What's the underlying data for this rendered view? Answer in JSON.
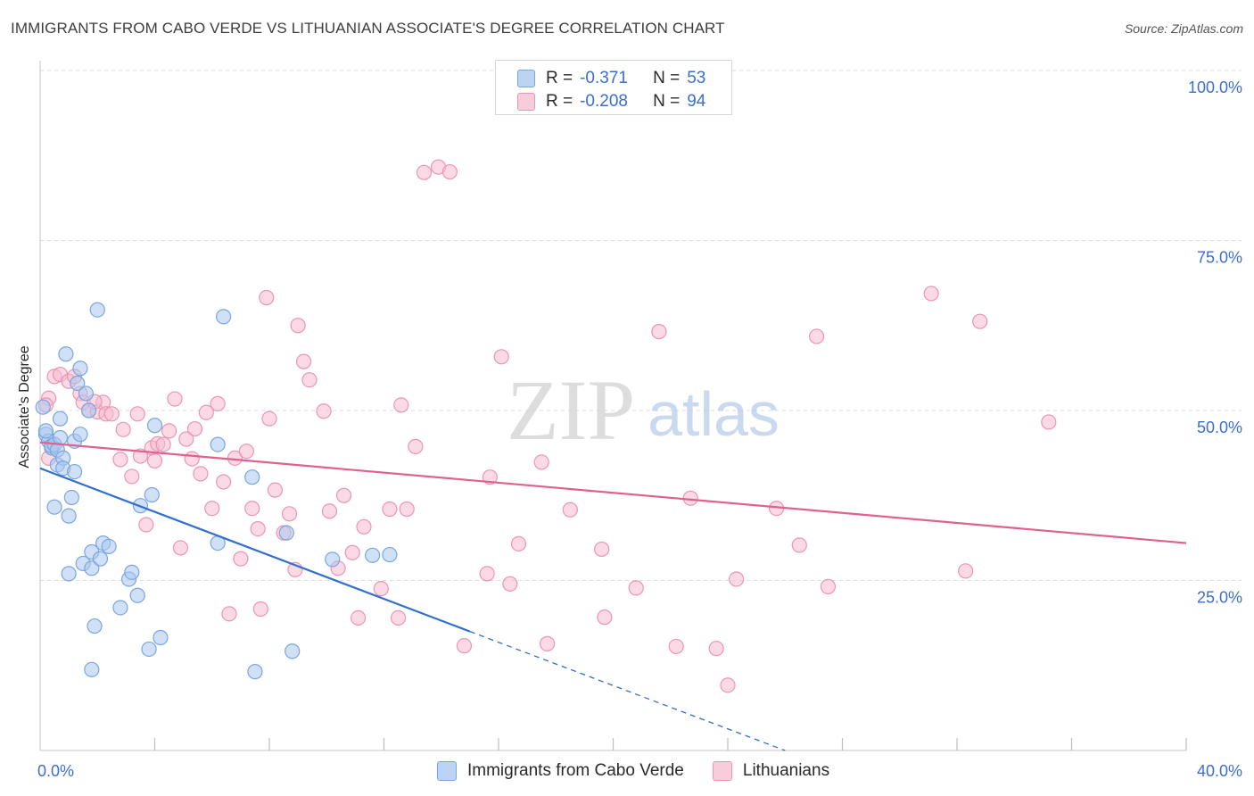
{
  "title": "IMMIGRANTS FROM CABO VERDE VS LITHUANIAN ASSOCIATE'S DEGREE CORRELATION CHART",
  "source": "Source: ZipAtlas.com",
  "watermark": {
    "zip": "ZIP",
    "atlas": "atlas"
  },
  "legend": {
    "r_label": "R =",
    "n_label": "N =",
    "series": [
      {
        "name": "Immigrants from Cabo Verde",
        "r": "-0.371",
        "n": "53"
      },
      {
        "name": "Lithuanians",
        "r": "-0.208",
        "n": "94"
      }
    ]
  },
  "colors": {
    "blue_fill": "#a9c8f0",
    "blue_stroke": "#7aa6de",
    "blue_line": "#2f6fd0",
    "pink_fill": "#f7bcd0",
    "pink_stroke": "#ec94b4",
    "pink_line": "#e0608e",
    "tick_text": "#3a6fd0",
    "grid": "#dedede"
  },
  "chart_data": {
    "type": "scatter",
    "title": "IMMIGRANTS FROM CABO VERDE VS LITHUANIAN ASSOCIATE'S DEGREE CORRELATION CHART",
    "xlabel": "",
    "ylabel": "Associate's Degree",
    "xlim": [
      0,
      40
    ],
    "ylim": [
      0,
      100
    ],
    "x_tick_labels": [
      {
        "value": 0,
        "label": "0.0%"
      },
      {
        "value": 40,
        "label": "40.0%"
      }
    ],
    "y_tick_labels": [
      {
        "value": 25,
        "label": "25.0%"
      },
      {
        "value": 50,
        "label": "50.0%"
      },
      {
        "value": 75,
        "label": "75.0%"
      },
      {
        "value": 100,
        "label": "100.0%"
      }
    ],
    "series": [
      {
        "name": "Immigrants from Cabo Verde",
        "color": "blue",
        "trend": {
          "x0": 0,
          "y0": 41.5,
          "x1": 15.0,
          "y1": 17.5,
          "dash_to_x": 26.0,
          "dash_to_y": 0
        },
        "points": [
          [
            0.1,
            50.5
          ],
          [
            0.2,
            46.5
          ],
          [
            0.3,
            45.5
          ],
          [
            0.4,
            44.5
          ],
          [
            0.4,
            44.8
          ],
          [
            0.5,
            45.0
          ],
          [
            0.6,
            44.2
          ],
          [
            0.6,
            42.0
          ],
          [
            0.7,
            46.0
          ],
          [
            0.7,
            48.8
          ],
          [
            0.8,
            43.0
          ],
          [
            0.8,
            41.5
          ],
          [
            0.9,
            58.3
          ],
          [
            1.0,
            26.0
          ],
          [
            1.0,
            34.5
          ],
          [
            1.1,
            37.2
          ],
          [
            1.2,
            41.0
          ],
          [
            1.2,
            45.5
          ],
          [
            1.3,
            54.0
          ],
          [
            1.4,
            56.2
          ],
          [
            1.4,
            46.5
          ],
          [
            1.5,
            27.5
          ],
          [
            1.6,
            52.5
          ],
          [
            1.7,
            50.0
          ],
          [
            1.8,
            29.2
          ],
          [
            1.8,
            26.8
          ],
          [
            1.9,
            18.3
          ],
          [
            2.0,
            64.8
          ],
          [
            2.1,
            28.2
          ],
          [
            2.2,
            30.5
          ],
          [
            2.4,
            30.0
          ],
          [
            2.8,
            21.0
          ],
          [
            3.1,
            25.2
          ],
          [
            3.2,
            26.2
          ],
          [
            3.5,
            36.0
          ],
          [
            3.4,
            22.8
          ],
          [
            3.8,
            14.9
          ],
          [
            3.9,
            37.6
          ],
          [
            4.0,
            47.8
          ],
          [
            4.2,
            16.6
          ],
          [
            1.8,
            11.9
          ],
          [
            6.2,
            45.0
          ],
          [
            6.2,
            30.5
          ],
          [
            6.4,
            63.8
          ],
          [
            7.4,
            40.2
          ],
          [
            7.5,
            11.6
          ],
          [
            8.6,
            32.0
          ],
          [
            8.8,
            14.6
          ],
          [
            10.2,
            28.1
          ],
          [
            11.6,
            28.7
          ],
          [
            12.2,
            28.8
          ],
          [
            0.5,
            35.8
          ],
          [
            0.2,
            47.0
          ]
        ]
      },
      {
        "name": "Lithuanians",
        "color": "pink",
        "trend": {
          "x0": 0,
          "y0": 45.3,
          "x1": 40,
          "y1": 30.5
        },
        "points": [
          [
            0.3,
            51.8
          ],
          [
            0.3,
            43.0
          ],
          [
            0.5,
            55.0
          ],
          [
            0.7,
            55.3
          ],
          [
            1.0,
            54.3
          ],
          [
            1.2,
            55.0
          ],
          [
            1.4,
            52.5
          ],
          [
            1.5,
            51.2
          ],
          [
            1.7,
            50.0
          ],
          [
            2.0,
            49.8
          ],
          [
            2.2,
            51.2
          ],
          [
            2.3,
            49.5
          ],
          [
            2.5,
            49.5
          ],
          [
            2.8,
            42.8
          ],
          [
            2.9,
            47.2
          ],
          [
            3.2,
            40.3
          ],
          [
            3.4,
            49.5
          ],
          [
            3.5,
            43.3
          ],
          [
            3.7,
            33.2
          ],
          [
            3.9,
            44.5
          ],
          [
            4.0,
            42.6
          ],
          [
            4.1,
            45.1
          ],
          [
            4.3,
            45.0
          ],
          [
            4.5,
            47.0
          ],
          [
            4.7,
            51.7
          ],
          [
            4.9,
            29.8
          ],
          [
            5.1,
            45.8
          ],
          [
            5.3,
            42.9
          ],
          [
            5.4,
            47.3
          ],
          [
            5.6,
            40.7
          ],
          [
            5.8,
            49.7
          ],
          [
            6.0,
            35.6
          ],
          [
            6.2,
            51.0
          ],
          [
            6.4,
            39.5
          ],
          [
            6.6,
            20.1
          ],
          [
            6.8,
            43.0
          ],
          [
            7.0,
            28.2
          ],
          [
            7.2,
            44.0
          ],
          [
            7.4,
            35.6
          ],
          [
            7.6,
            32.6
          ],
          [
            7.7,
            20.8
          ],
          [
            7.9,
            66.6
          ],
          [
            8.0,
            48.8
          ],
          [
            8.2,
            38.3
          ],
          [
            8.5,
            32.0
          ],
          [
            8.7,
            34.8
          ],
          [
            8.9,
            26.6
          ],
          [
            9.0,
            62.5
          ],
          [
            9.2,
            57.2
          ],
          [
            9.4,
            54.5
          ],
          [
            9.9,
            49.9
          ],
          [
            10.1,
            35.2
          ],
          [
            10.4,
            26.8
          ],
          [
            10.6,
            37.5
          ],
          [
            10.9,
            29.1
          ],
          [
            11.1,
            19.5
          ],
          [
            11.3,
            32.9
          ],
          [
            11.9,
            23.8
          ],
          [
            12.2,
            35.5
          ],
          [
            12.6,
            50.8
          ],
          [
            12.5,
            19.5
          ],
          [
            12.8,
            35.5
          ],
          [
            13.1,
            44.7
          ],
          [
            13.4,
            85.0
          ],
          [
            13.9,
            85.8
          ],
          [
            14.3,
            85.1
          ],
          [
            14.8,
            15.4
          ],
          [
            15.6,
            26.0
          ],
          [
            15.7,
            40.2
          ],
          [
            16.1,
            57.9
          ],
          [
            16.4,
            24.5
          ],
          [
            16.7,
            30.4
          ],
          [
            17.5,
            42.4
          ],
          [
            17.7,
            15.7
          ],
          [
            18.5,
            35.4
          ],
          [
            19.6,
            29.6
          ],
          [
            19.7,
            19.6
          ],
          [
            20.8,
            23.9
          ],
          [
            21.6,
            61.6
          ],
          [
            22.2,
            15.3
          ],
          [
            22.7,
            37.1
          ],
          [
            23.6,
            15.0
          ],
          [
            24.0,
            9.6
          ],
          [
            24.3,
            25.2
          ],
          [
            25.7,
            35.6
          ],
          [
            26.5,
            30.2
          ],
          [
            27.1,
            60.9
          ],
          [
            27.5,
            24.1
          ],
          [
            31.1,
            67.2
          ],
          [
            32.8,
            63.1
          ],
          [
            32.3,
            26.4
          ],
          [
            35.2,
            48.3
          ],
          [
            0.2,
            50.8
          ],
          [
            1.9,
            51.3
          ]
        ]
      }
    ]
  }
}
